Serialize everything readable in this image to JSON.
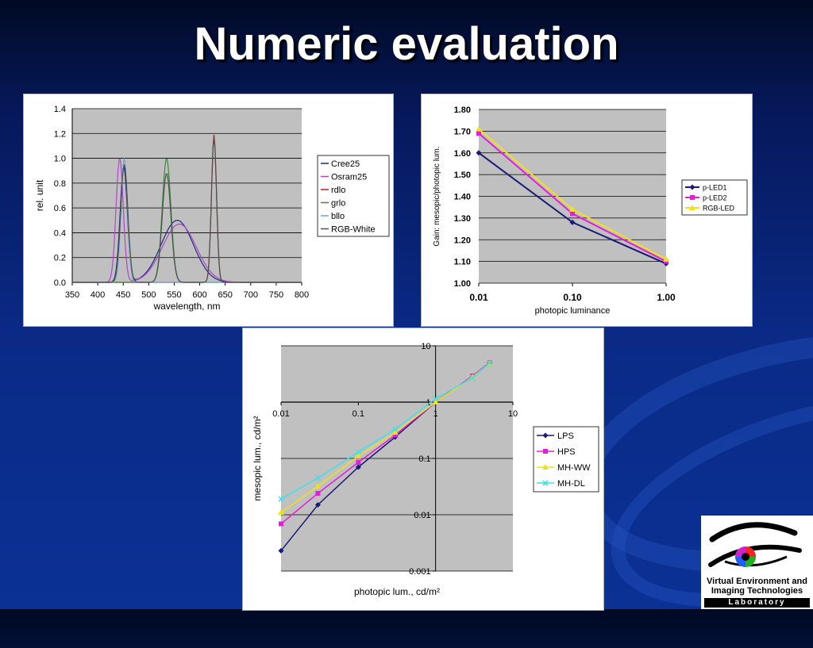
{
  "slide": {
    "title": "Numeric evaluation",
    "logo": {
      "line1": "Virtual Environment and",
      "line2": "Imaging Technologies",
      "line3": "Laboratory"
    }
  },
  "chart_data": [
    {
      "type": "line",
      "xlabel": "wavelength, nm",
      "ylabel": "rel. unit",
      "xlim": [
        350,
        800
      ],
      "ylim": [
        0,
        1.4
      ],
      "x_ticks": [
        "350",
        "400",
        "450",
        "500",
        "550",
        "600",
        "650",
        "700",
        "750",
        "800"
      ],
      "y_ticks": [
        "0.0",
        "0.2",
        "0.4",
        "0.6",
        "0.8",
        "1.0",
        "1.2",
        "1.4"
      ],
      "grid": "horizontal",
      "legend": "right",
      "series": [
        {
          "name": "Cree25",
          "color": "#1f2a80",
          "peaks": [
            {
              "c": 451,
              "w": 10,
              "h": 0.93
            },
            {
              "c": 556,
              "w": 45,
              "h": 0.5
            }
          ]
        },
        {
          "name": "Osram25",
          "color": "#b048c8",
          "peaks": [
            {
              "c": 443,
              "w": 10,
              "h": 1.0
            },
            {
              "c": 560,
              "w": 47,
              "h": 0.47
            }
          ]
        },
        {
          "name": "rdlo",
          "color": "#b82020",
          "peaks": [
            {
              "c": 628,
              "w": 7,
              "h": 1.19
            }
          ]
        },
        {
          "name": "grlo",
          "color": "#3a8a3a",
          "peaks": [
            {
              "c": 535,
              "w": 12,
              "h": 1.0
            }
          ]
        },
        {
          "name": "bllo",
          "color": "#6aa6d8",
          "peaks": [
            {
              "c": 452,
              "w": 9,
              "h": 1.0
            }
          ]
        },
        {
          "name": "RGB-White",
          "color": "#505050",
          "peaks": [
            {
              "c": 452,
              "w": 10,
              "h": 0.95
            },
            {
              "c": 535,
              "w": 12,
              "h": 0.88
            },
            {
              "c": 628,
              "w": 7,
              "h": 1.17
            }
          ]
        }
      ]
    },
    {
      "type": "line",
      "xlabel": "photopic luminance",
      "ylabel": "Gain: mesopic/photopic lum.",
      "categories": [
        "0.01",
        "0.10",
        "1.00"
      ],
      "ylim": [
        1.0,
        1.8
      ],
      "y_ticks": [
        "1.00",
        "1.10",
        "1.20",
        "1.30",
        "1.40",
        "1.50",
        "1.60",
        "1.70",
        "1.80"
      ],
      "grid": "horizontal",
      "legend": "right",
      "series": [
        {
          "name": "p-LED1",
          "color": "#1a1a78",
          "marker": "diamond",
          "values": [
            1.6,
            1.28,
            1.09
          ]
        },
        {
          "name": "p-LED2",
          "color": "#e020d8",
          "marker": "square",
          "values": [
            1.69,
            1.32,
            1.1
          ]
        },
        {
          "name": "RGB-LED",
          "color": "#f0e020",
          "marker": "triangle",
          "values": [
            1.71,
            1.34,
            1.11
          ]
        }
      ]
    },
    {
      "type": "line",
      "xlabel": "photopic lum., cd/m²",
      "ylabel": "mesopic lum., cd/m²",
      "xscale": "log",
      "yscale": "log",
      "xlim": [
        0.01,
        10
      ],
      "ylim": [
        0.001,
        10
      ],
      "x_ticks": [
        "0.01",
        "0.1",
        "1",
        "10"
      ],
      "y_ticks": [
        "0.001",
        "0.01",
        "0.1",
        "1",
        "10"
      ],
      "grid": "horizontal",
      "legend": "right",
      "x": [
        0.01,
        0.03,
        0.1,
        0.3,
        1,
        3,
        5
      ],
      "series": [
        {
          "name": "LPS",
          "color": "#1a1a78",
          "marker": "diamond",
          "values": [
            0.0023,
            0.015,
            0.07,
            0.24,
            1.0,
            2.9,
            5.0
          ]
        },
        {
          "name": "HPS",
          "color": "#e020d8",
          "marker": "square",
          "values": [
            0.0069,
            0.024,
            0.085,
            0.26,
            1.0,
            2.9,
            5.0
          ]
        },
        {
          "name": "MH-WW",
          "color": "#f0e020",
          "marker": "triangle",
          "values": [
            0.011,
            0.032,
            0.11,
            0.29,
            1.0,
            2.8,
            4.9
          ]
        },
        {
          "name": "MH-DL",
          "color": "#40e0e8",
          "marker": "x",
          "values": [
            0.019,
            0.045,
            0.13,
            0.33,
            1.15,
            2.7,
            4.9
          ]
        }
      ]
    }
  ]
}
